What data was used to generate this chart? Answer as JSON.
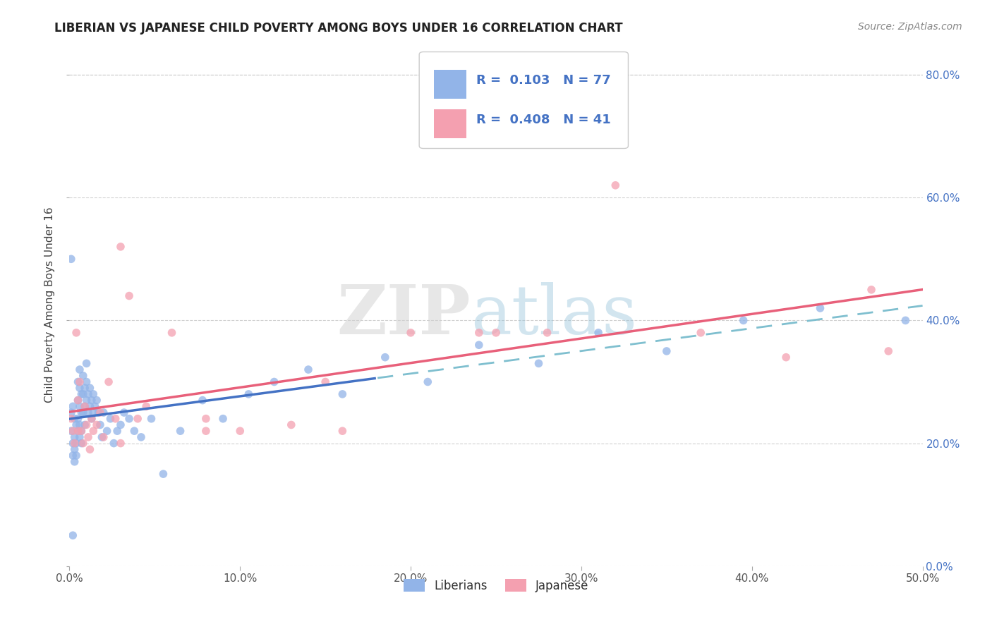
{
  "title": "LIBERIAN VS JAPANESE CHILD POVERTY AMONG BOYS UNDER 16 CORRELATION CHART",
  "source": "Source: ZipAtlas.com",
  "ylabel": "Child Poverty Among Boys Under 16",
  "xlim": [
    0.0,
    0.5
  ],
  "ylim": [
    0.0,
    0.85
  ],
  "liberian_color": "#92b4e8",
  "japanese_color": "#f4a0b0",
  "liberian_line_color": "#4472c4",
  "japanese_line_color": "#e8607a",
  "dashed_line_color": "#7fbfcf",
  "R_liberian": 0.103,
  "N_liberian": 77,
  "R_japanese": 0.408,
  "N_japanese": 41,
  "watermark_zip": "ZIP",
  "watermark_atlas": "atlas",
  "background_color": "#ffffff",
  "grid_color": "#cccccc",
  "right_axis_color": "#4472c4",
  "liberian_x": [
    0.001,
    0.001,
    0.002,
    0.002,
    0.002,
    0.003,
    0.003,
    0.003,
    0.003,
    0.004,
    0.004,
    0.004,
    0.005,
    0.005,
    0.005,
    0.005,
    0.006,
    0.006,
    0.006,
    0.006,
    0.006,
    0.007,
    0.007,
    0.007,
    0.007,
    0.008,
    0.008,
    0.008,
    0.009,
    0.009,
    0.009,
    0.01,
    0.01,
    0.01,
    0.011,
    0.011,
    0.012,
    0.012,
    0.013,
    0.013,
    0.014,
    0.014,
    0.015,
    0.016,
    0.017,
    0.018,
    0.019,
    0.02,
    0.022,
    0.024,
    0.026,
    0.028,
    0.03,
    0.032,
    0.035,
    0.038,
    0.042,
    0.048,
    0.055,
    0.065,
    0.078,
    0.09,
    0.105,
    0.12,
    0.14,
    0.16,
    0.185,
    0.21,
    0.24,
    0.275,
    0.31,
    0.35,
    0.395,
    0.44,
    0.49,
    0.001,
    0.002
  ],
  "liberian_y": [
    0.25,
    0.22,
    0.26,
    0.2,
    0.18,
    0.24,
    0.21,
    0.19,
    0.17,
    0.23,
    0.2,
    0.18,
    0.3,
    0.27,
    0.24,
    0.22,
    0.32,
    0.29,
    0.26,
    0.23,
    0.21,
    0.28,
    0.25,
    0.22,
    0.2,
    0.31,
    0.28,
    0.25,
    0.29,
    0.26,
    0.23,
    0.33,
    0.3,
    0.27,
    0.28,
    0.25,
    0.29,
    0.26,
    0.27,
    0.24,
    0.28,
    0.25,
    0.26,
    0.27,
    0.25,
    0.23,
    0.21,
    0.25,
    0.22,
    0.24,
    0.2,
    0.22,
    0.23,
    0.25,
    0.24,
    0.22,
    0.21,
    0.24,
    0.15,
    0.22,
    0.27,
    0.24,
    0.28,
    0.3,
    0.32,
    0.28,
    0.34,
    0.3,
    0.36,
    0.33,
    0.38,
    0.35,
    0.4,
    0.42,
    0.4,
    0.5,
    0.05
  ],
  "japanese_x": [
    0.001,
    0.002,
    0.003,
    0.004,
    0.005,
    0.005,
    0.006,
    0.007,
    0.008,
    0.009,
    0.01,
    0.011,
    0.012,
    0.013,
    0.014,
    0.016,
    0.018,
    0.02,
    0.023,
    0.027,
    0.03,
    0.035,
    0.04,
    0.045,
    0.06,
    0.08,
    0.1,
    0.13,
    0.16,
    0.2,
    0.24,
    0.28,
    0.32,
    0.37,
    0.42,
    0.47,
    0.03,
    0.08,
    0.15,
    0.25,
    0.48
  ],
  "japanese_y": [
    0.24,
    0.22,
    0.2,
    0.38,
    0.27,
    0.22,
    0.3,
    0.22,
    0.2,
    0.26,
    0.23,
    0.21,
    0.19,
    0.24,
    0.22,
    0.23,
    0.25,
    0.21,
    0.3,
    0.24,
    0.52,
    0.44,
    0.24,
    0.26,
    0.38,
    0.24,
    0.22,
    0.23,
    0.22,
    0.38,
    0.38,
    0.38,
    0.62,
    0.38,
    0.34,
    0.45,
    0.2,
    0.22,
    0.3,
    0.38,
    0.35
  ]
}
